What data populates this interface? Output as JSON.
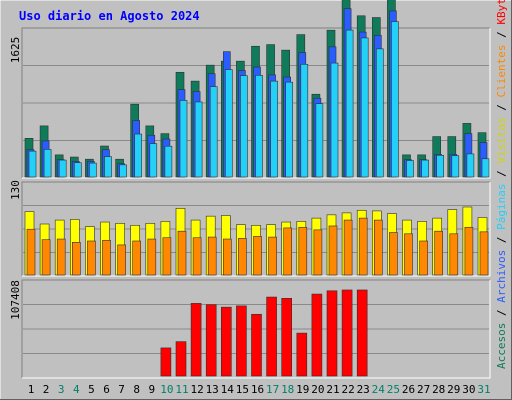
{
  "chart_data": {
    "type": "bar",
    "title": "Uso diario en Agosto 2024",
    "days": [
      "1",
      "2",
      "3",
      "4",
      "5",
      "6",
      "7",
      "8",
      "9",
      "10",
      "11",
      "12",
      "13",
      "14",
      "15",
      "16",
      "17",
      "18",
      "19",
      "20",
      "21",
      "22",
      "23",
      "24",
      "25",
      "26",
      "27",
      "28",
      "29",
      "30",
      "31"
    ],
    "weekend_days": [
      "3",
      "4",
      "10",
      "11",
      "17",
      "18",
      "24",
      "25",
      "31"
    ],
    "top_panel": {
      "ymax_label": "1625",
      "ymax": 1625,
      "series": [
        {
          "name": "Accesos",
          "color": "#0f7b5a",
          "values": [
            446,
            589,
            255,
            230,
            205,
            357,
            205,
            839,
            589,
            500,
            1207,
            1105,
            1289,
            1335,
            1335,
            1507,
            1526,
            1462,
            1641,
            954,
            1692,
            2157,
            1858,
            1838,
            2376,
            255,
            255,
            466,
            466,
            618,
            511
          ]
        },
        {
          "name": "Archivos",
          "color": "#2b5cff",
          "values": [
            314,
            416,
            200,
            180,
            180,
            314,
            153,
            651,
            481,
            438,
            1007,
            984,
            1190,
            1445,
            1227,
            1267,
            1177,
            1152,
            1434,
            908,
            1500,
            1940,
            1670,
            1632,
            1914,
            200,
            200,
            260,
            260,
            500,
            397
          ]
        },
        {
          "name": "Páginas",
          "color": "#22d0f8",
          "values": [
            298,
            318,
            195,
            165,
            160,
            235,
            140,
            495,
            385,
            355,
            883,
            865,
            1041,
            1238,
            1168,
            1172,
            1105,
            1093,
            1299,
            845,
            1313,
            1693,
            1603,
            1477,
            1791,
            190,
            195,
            250,
            245,
            266,
            210
          ]
        }
      ]
    },
    "middle_panel": {
      "ymax_label": "130",
      "ymax": 130,
      "series": [
        {
          "name": "Visitas",
          "color": "#ffff00",
          "values": [
            97,
            78,
            84,
            85,
            74,
            81,
            79,
            76,
            79,
            82,
            102,
            84,
            90,
            91,
            77,
            76,
            77,
            81,
            82,
            87,
            92,
            95,
            99,
            98,
            94,
            84,
            82,
            87,
            100,
            104,
            88
          ]
        },
        {
          "name": "Clientes",
          "color": "#ff8800",
          "values": [
            70,
            54,
            55,
            50,
            52,
            53,
            46,
            52,
            55,
            57,
            67,
            57,
            58,
            55,
            56,
            59,
            58,
            72,
            73,
            69,
            75,
            84,
            87,
            84,
            65,
            63,
            52,
            67,
            63,
            73,
            66
          ]
        }
      ]
    },
    "bottom_panel": {
      "ymax_label": "107408",
      "ymax": 107408,
      "series": [
        {
          "name": "KBytes",
          "color": "#ff0000",
          "values": [
            0,
            0,
            0,
            0,
            0,
            0,
            0,
            0,
            0,
            34270,
            41950,
            88632,
            87098,
            84029,
            85563,
            75333,
            96362,
            94827,
            52372,
            100000,
            104000,
            105000,
            105000,
            0,
            0,
            0,
            0,
            0,
            0,
            0,
            0
          ]
        }
      ]
    },
    "right_legend": [
      {
        "text": "Accesos",
        "color": "#0f7b5a"
      },
      {
        "text": " / ",
        "color": "#000000"
      },
      {
        "text": "Archivos",
        "color": "#2b5cff"
      },
      {
        "text": " / ",
        "color": "#000000"
      },
      {
        "text": "Páginas",
        "color": "#22d0f8"
      },
      {
        "text": " / ",
        "color": "#000000"
      },
      {
        "text": "Visitas",
        "color": "#d4d400"
      },
      {
        "text": " / ",
        "color": "#000000"
      },
      {
        "text": "Clientes",
        "color": "#ff8800"
      },
      {
        "text": " / ",
        "color": "#000000"
      },
      {
        "text": "KBytes",
        "color": "#ff0000"
      }
    ],
    "grid": true
  },
  "colors": {
    "background": "#c0c0c0",
    "panel": "#c0c0c0",
    "title": "#0000ff",
    "weekday_label": "#000000",
    "weekend_label": "#00806a"
  }
}
